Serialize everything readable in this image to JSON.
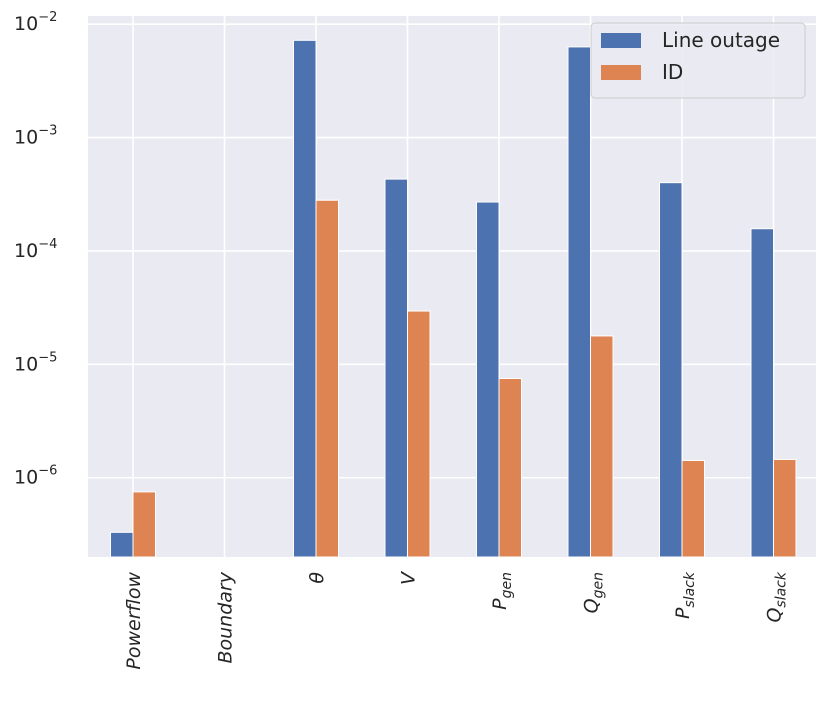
{
  "chart_data": {
    "type": "bar",
    "scale": "log",
    "ylim": [
      2e-07,
      0.0118
    ],
    "grid": true,
    "legend_position": "top-right",
    "categories": [
      {
        "base": "Powerflow",
        "sub": ""
      },
      {
        "base": "Boundary",
        "sub": ""
      },
      {
        "base": "θ",
        "sub": ""
      },
      {
        "base": "V",
        "sub": ""
      },
      {
        "base": "P",
        "sub": "gen"
      },
      {
        "base": "Q",
        "sub": "gen"
      },
      {
        "base": "P",
        "sub": "slack"
      },
      {
        "base": "Q",
        "sub": "slack"
      }
    ],
    "y_ticks": [
      {
        "value": 1e-06,
        "base": "10",
        "exp": "−6"
      },
      {
        "value": 1e-05,
        "base": "10",
        "exp": "−5"
      },
      {
        "value": 0.0001,
        "base": "10",
        "exp": "−4"
      },
      {
        "value": 0.001,
        "base": "10",
        "exp": "−3"
      },
      {
        "value": 0.01,
        "base": "10",
        "exp": "−2"
      }
    ],
    "series": [
      {
        "name": "Line outage",
        "color": "#4c72b0",
        "values": [
          3.3e-07,
          null,
          0.0072,
          0.00043,
          0.00027,
          0.0063,
          0.0004,
          0.000157
        ]
      },
      {
        "name": "ID",
        "color": "#dd8452",
        "values": [
          7.5e-07,
          null,
          0.00028,
          2.95e-05,
          7.5e-06,
          1.78e-05,
          1.42e-06,
          1.45e-06
        ]
      }
    ]
  }
}
